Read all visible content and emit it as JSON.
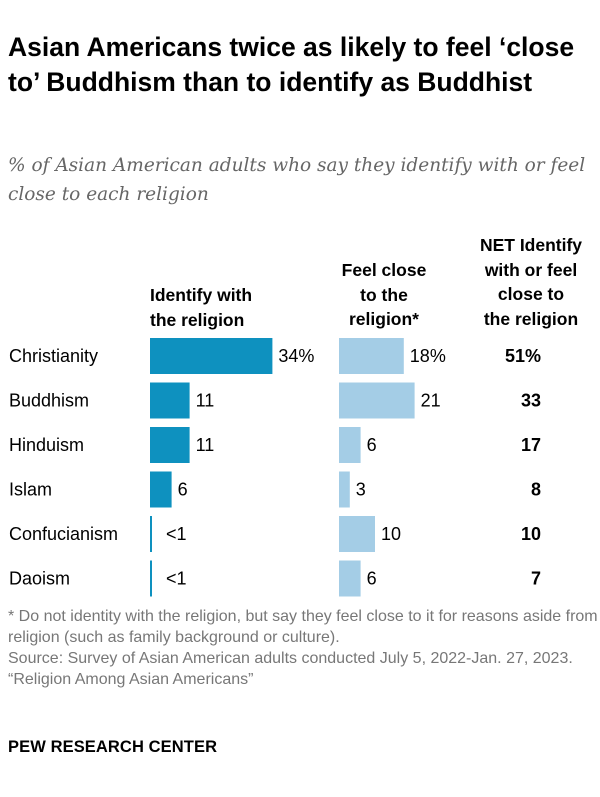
{
  "title": "Asian Americans twice as likely to feel ‘close to’ Buddhism than to identify as Buddhist",
  "subtitle": "% of Asian American adults who say they identify with or feel close to each religion",
  "columns": {
    "identify": "Identify with\nthe religion",
    "close": "Feel close\nto the\nreligion*",
    "net": "NET Identify\nwith or feel\nclose to\nthe religion"
  },
  "colors": {
    "identify": "#0e91bf",
    "close": "#a4cde6"
  },
  "chart_data": {
    "type": "bar",
    "categories": [
      "Christianity",
      "Buddhism",
      "Hinduism",
      "Islam",
      "Confucianism",
      "Daoism"
    ],
    "series": [
      {
        "name": "Identify with the religion",
        "values": [
          34,
          11,
          11,
          6,
          0.5,
          0.5
        ],
        "labels": [
          "34%",
          "11",
          "11",
          "6",
          "<1",
          "<1"
        ]
      },
      {
        "name": "Feel close to the religion*",
        "values": [
          18,
          21,
          6,
          3,
          10,
          6
        ],
        "labels": [
          "18%",
          "21",
          "6",
          "3",
          "10",
          "6"
        ]
      }
    ],
    "net": {
      "values": [
        51,
        33,
        17,
        8,
        10,
        7
      ],
      "labels": [
        "51%",
        "33",
        "17",
        "8",
        "10",
        "7"
      ]
    }
  },
  "footer": {
    "note": "* Do not identity with the religion, but say they feel close to it for reasons aside from religion (such as family background or culture).",
    "source": "Source: Survey of Asian American adults conducted July 5, 2022-Jan. 27, 2023.",
    "report": "“Religion Among Asian Americans”"
  },
  "brand": "PEW RESEARCH CENTER"
}
